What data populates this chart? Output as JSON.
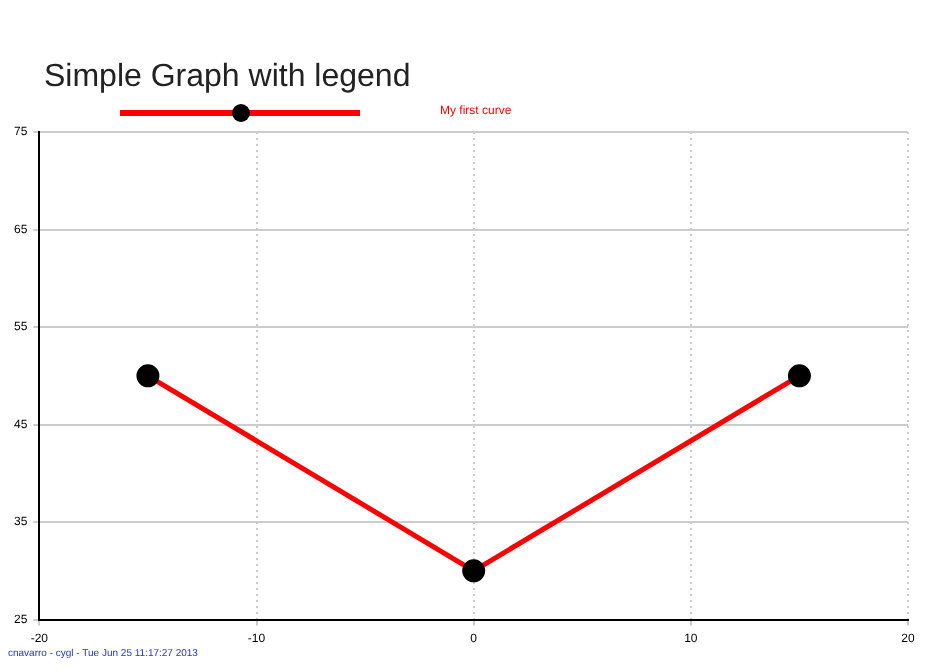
{
  "chart_data": {
    "type": "line",
    "title": "Simple Graph with legend",
    "x": [
      -15,
      0,
      15
    ],
    "series": [
      {
        "name": "My first curve",
        "color": "#ff0000",
        "values": [
          50,
          30,
          50
        ]
      }
    ],
    "xlim": [
      -20,
      20
    ],
    "xticks": [
      -20,
      -10,
      0,
      10,
      20
    ],
    "ylim": [
      25,
      75
    ],
    "yticks": [
      25,
      35,
      45,
      55,
      65,
      75
    ],
    "grid": true,
    "legend": "top",
    "marker": "circle",
    "line_style": "solid",
    "annotations": [
      "cnavarro - cygl - Tue Jun 25 11:17:27 2013"
    ]
  }
}
